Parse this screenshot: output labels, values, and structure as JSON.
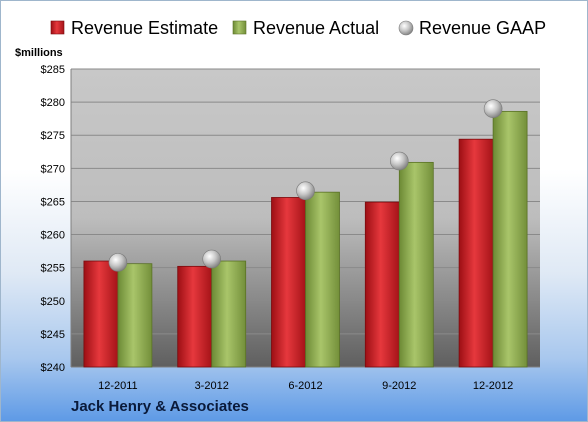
{
  "chart_data": {
    "type": "bar",
    "title": "",
    "ylabel": "$millions",
    "footer": "Jack Henry & Associates",
    "categories": [
      "12-2011",
      "3-2012",
      "6-2012",
      "9-2012",
      "12-2012"
    ],
    "series": [
      {
        "name": "Revenue Estimate",
        "kind": "bar",
        "color": "#cc1f24",
        "values": [
          256.0,
          255.2,
          265.6,
          264.9,
          274.4
        ]
      },
      {
        "name": "Revenue Actual",
        "kind": "bar",
        "color": "#8fae4f",
        "values": [
          255.6,
          256.0,
          266.4,
          270.9,
          278.6
        ]
      },
      {
        "name": "Revenue GAAP",
        "kind": "marker",
        "color": "#a8a8a8",
        "values": [
          255.8,
          256.3,
          266.6,
          271.1,
          279.0
        ]
      }
    ],
    "ylim": [
      240,
      285
    ],
    "yticks": [
      240,
      245,
      250,
      255,
      260,
      265,
      270,
      275,
      280,
      285
    ],
    "ytick_prefix": "$",
    "grid": true,
    "legend_position": "top"
  }
}
